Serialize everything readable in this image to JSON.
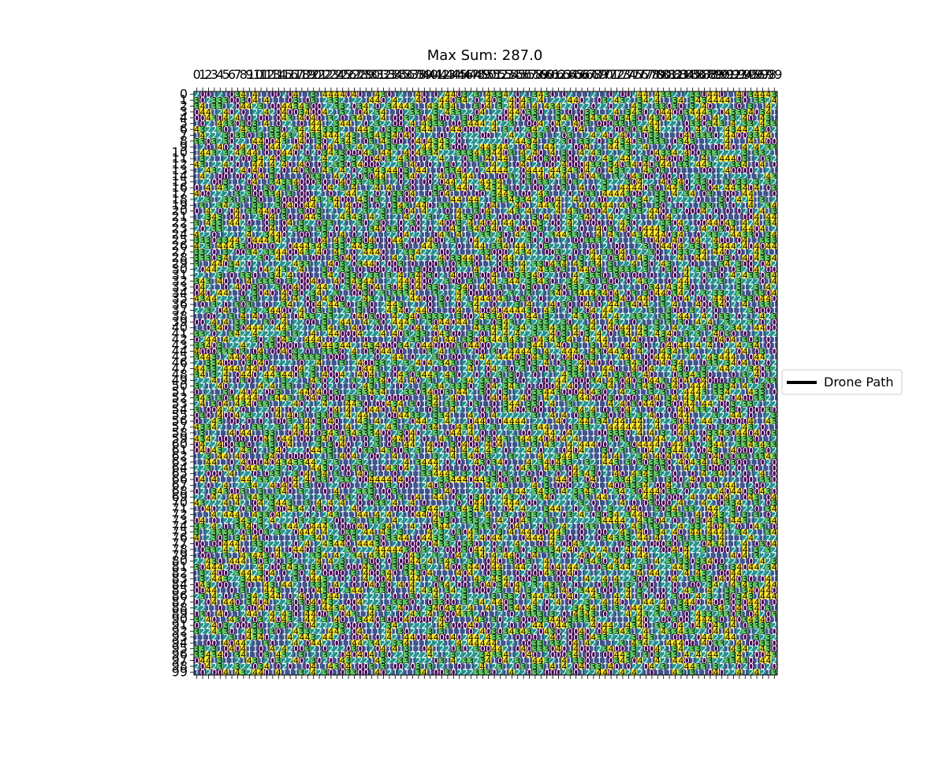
{
  "chart_data": {
    "type": "heatmap",
    "title": "Max Sum: 287.0",
    "rows": 100,
    "cols": 100,
    "value_range": [
      0,
      4
    ],
    "colormap": "viridis",
    "palette": [
      "#440154",
      "#3b528b",
      "#21918c",
      "#5ec962",
      "#fde725"
    ],
    "x_tick_labels_position": "top",
    "y_tick_labels_position": "left",
    "cell_value_labels": true,
    "grid": false,
    "legend": {
      "placement": "center-right outside plot",
      "entries": [
        {
          "label": "Drone Path",
          "color": "#000000",
          "style": "line"
        }
      ]
    },
    "path_series": {
      "name": "Drone Path",
      "points": []
    }
  }
}
